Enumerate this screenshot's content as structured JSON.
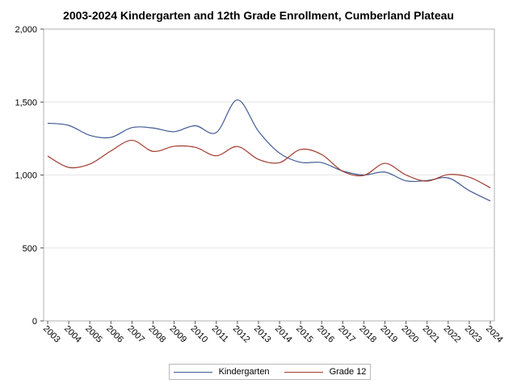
{
  "chart_data": {
    "type": "line",
    "title": "2003-2024 Kindergarten and 12th Grade Enrollment, Cumberland Plateau",
    "xlabel": "",
    "ylabel": "",
    "ylim": [
      0,
      2000
    ],
    "y_ticks": [
      "0",
      "500",
      "1,000",
      "1,500",
      "2,000"
    ],
    "y_tick_values": [
      0,
      500,
      1000,
      1500,
      2000
    ],
    "categories": [
      "2003",
      "2004",
      "2005",
      "2006",
      "2007",
      "2008",
      "2009",
      "2010",
      "2011",
      "2012",
      "2013",
      "2014",
      "2015",
      "2016",
      "2017",
      "2018",
      "2019",
      "2020",
      "2021",
      "2022",
      "2023",
      "2024"
    ],
    "grid": true,
    "legend_position": "bottom",
    "series": [
      {
        "name": "Kindergarten",
        "color": "#3f5b93",
        "values": [
          1355,
          1340,
          1272,
          1258,
          1325,
          1322,
          1297,
          1338,
          1291,
          1515,
          1300,
          1150,
          1087,
          1085,
          1027,
          1000,
          1020,
          960,
          962,
          980,
          893,
          822
        ]
      },
      {
        "name": "Grade 12",
        "color": "#a23a2e",
        "values": [
          1130,
          1052,
          1075,
          1165,
          1238,
          1162,
          1197,
          1190,
          1132,
          1195,
          1107,
          1085,
          1175,
          1140,
          1025,
          997,
          1080,
          1000,
          958,
          1003,
          985,
          912
        ]
      }
    ]
  }
}
